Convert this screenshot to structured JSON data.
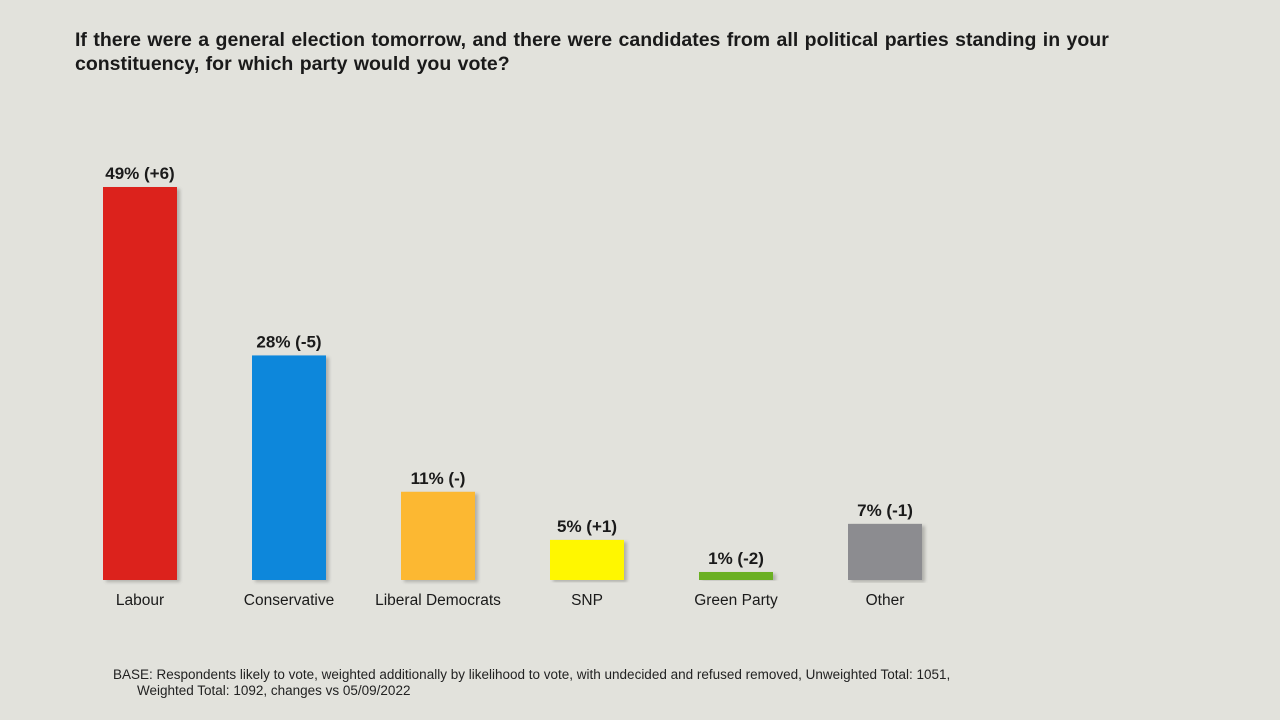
{
  "page": {
    "title": "If there were a general election tomorrow, and there were candidates from all political parties standing in your constituency, for which party would you vote?",
    "footnote_line1": "BASE: Respondents likely to vote, weighted additionally by likelihood to vote, with undecided and refused removed, Unweighted Total: 1051,",
    "footnote_line2": "Weighted Total: 1092, changes vs 05/09/2022"
  },
  "chart_data": {
    "type": "bar",
    "title": "If there were a general election tomorrow, and there were candidates from all political parties standing in your constituency, for which party would you vote?",
    "xlabel": "",
    "ylabel": "",
    "ylim": [
      0,
      49
    ],
    "grid": false,
    "legend": "none",
    "categories": [
      "Labour",
      "Conservative",
      "Liberal Democrats",
      "SNP",
      "Green Party",
      "Other"
    ],
    "values": [
      49,
      28,
      11,
      5,
      1,
      7
    ],
    "data_labels": [
      "49% (+6)",
      "28% (-5)",
      "11% (-)",
      "5% (+1)",
      "1% (-2)",
      "7% (-1)"
    ],
    "colors": [
      "#dc241f",
      "#0787db",
      "#fcb830",
      "#fff700",
      "#6ab023",
      "#8c8c90"
    ]
  }
}
